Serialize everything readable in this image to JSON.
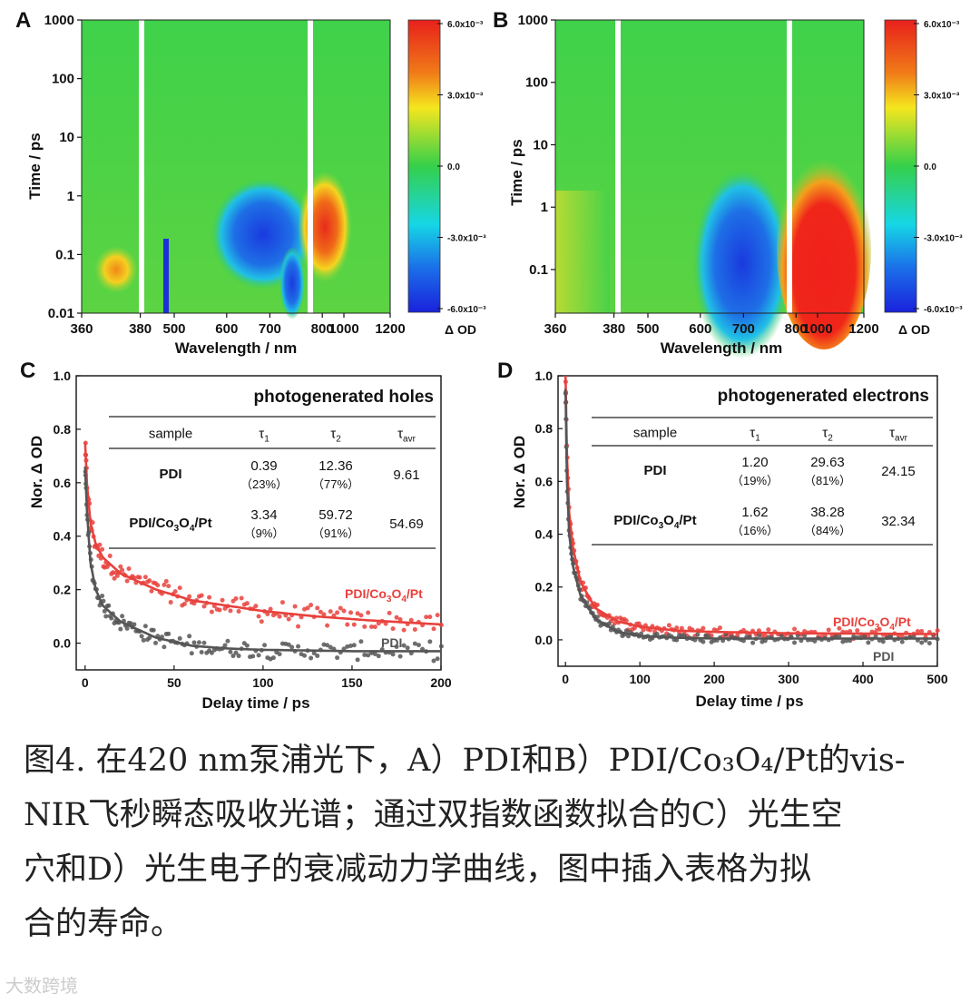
{
  "chart_data": [
    {
      "panel": "A",
      "type": "heatmap",
      "sample": "PDI",
      "xlabel": "Wavelength / nm",
      "ylabel": "Time / ps",
      "x_ticks": [
        "360",
        "380",
        "500",
        "600",
        "700",
        "800",
        "1000",
        "1200"
      ],
      "y_ticks": [
        "1000",
        "100",
        "10",
        "1",
        "0.1",
        "0.01"
      ],
      "y_scale": "log",
      "ylim": [
        0.01,
        1000
      ],
      "colorbar": {
        "label": "Δ OD",
        "ticks": [
          "6.0x10⁻³",
          "3.0x10⁻³",
          "0.0",
          "-3.0x10⁻³",
          "-6.0x10⁻³"
        ],
        "range": [
          -0.006,
          0.006
        ]
      },
      "features": [
        {
          "wavelength_nm": 370,
          "time_ps": 0.07,
          "sign": "positive"
        },
        {
          "wavelength_nm": 490,
          "time_ps": 0.05,
          "sign": "negative"
        },
        {
          "wavelength_nm": 700,
          "time_ps": 0.25,
          "sign": "negative"
        },
        {
          "wavelength_nm": 950,
          "time_ps": 0.3,
          "sign": "positive"
        }
      ]
    },
    {
      "panel": "B",
      "type": "heatmap",
      "sample": "PDI/Co3O4/Pt",
      "xlabel": "Wavelength / nm",
      "ylabel": "Time / ps",
      "x_ticks": [
        "360",
        "380",
        "500",
        "600",
        "700",
        "800",
        "1000",
        "1200"
      ],
      "y_ticks": [
        "1000",
        "100",
        "10",
        "1",
        "0.1"
      ],
      "y_scale": "log",
      "ylim": [
        0.02,
        1000
      ],
      "colorbar": {
        "label": "Δ OD",
        "ticks": [
          "6.0x10⁻³",
          "3.0x10⁻³",
          "0.0",
          "-3.0x10⁻³",
          "-6.0x10⁻³"
        ],
        "range": [
          -0.006,
          0.006
        ]
      },
      "features": [
        {
          "wavelength_nm": 720,
          "time_ps": 0.15,
          "sign": "negative"
        },
        {
          "wavelength_nm": 1050,
          "time_ps": 0.3,
          "sign": "positive"
        }
      ]
    },
    {
      "panel": "C",
      "type": "scatter",
      "title": "photogenerated holes",
      "xlabel": "Delay time / ps",
      "ylabel": "Nor. Δ OD",
      "xlim": [
        -5,
        200
      ],
      "ylim": [
        -0.1,
        1.0
      ],
      "x_ticks": [
        0,
        50,
        100,
        150,
        200
      ],
      "y_ticks": [
        0.0,
        0.2,
        0.4,
        0.6,
        0.8,
        1.0
      ],
      "series": [
        {
          "name": "PDI/Co3O4/Pt",
          "color": "#e8413c",
          "fit": [
            [
              0,
              0.75
            ],
            [
              1,
              0.6
            ],
            [
              3,
              0.45
            ],
            [
              6,
              0.37
            ],
            [
              10,
              0.32
            ],
            [
              20,
              0.26
            ],
            [
              40,
              0.2
            ],
            [
              60,
              0.16
            ],
            [
              80,
              0.14
            ],
            [
              100,
              0.12
            ],
            [
              130,
              0.1
            ],
            [
              160,
              0.085
            ],
            [
              200,
              0.07
            ]
          ]
        },
        {
          "name": "PDI",
          "color": "#555555",
          "fit": [
            [
              0,
              0.66
            ],
            [
              1,
              0.5
            ],
            [
              3,
              0.3
            ],
            [
              6,
              0.2
            ],
            [
              10,
              0.14
            ],
            [
              20,
              0.08
            ],
            [
              40,
              0.02
            ],
            [
              60,
              -0.01
            ],
            [
              80,
              -0.02
            ],
            [
              100,
              -0.025
            ],
            [
              150,
              -0.03
            ],
            [
              200,
              -0.03
            ]
          ]
        }
      ],
      "table": {
        "headers": [
          "sample",
          "τ",
          "τ",
          "τ"
        ],
        "header_subs": [
          "",
          "1",
          "2",
          "avr"
        ],
        "rows": [
          {
            "sample": "PDI",
            "t1": "0.39",
            "t1p": "（23%）",
            "t2": "12.36",
            "t2p": "（77%）",
            "tavr": "9.61"
          },
          {
            "sample": "PDI/Co3O4/Pt",
            "t1": "3.34",
            "t1p": "（9%）",
            "t2": "59.72",
            "t2p": "（91%）",
            "tavr": "54.69"
          }
        ]
      }
    },
    {
      "panel": "D",
      "type": "scatter",
      "title": "photogenerated electrons",
      "xlabel": "Delay time / ps",
      "ylabel": "Nor. Δ OD",
      "xlim": [
        -10,
        500
      ],
      "ylim": [
        -0.1,
        1.0
      ],
      "x_ticks": [
        0,
        100,
        200,
        300,
        400,
        500
      ],
      "y_ticks": [
        0.0,
        0.2,
        0.4,
        0.6,
        0.8,
        1.0
      ],
      "series": [
        {
          "name": "PDI/Co3O4/Pt",
          "color": "#e8413c",
          "fit": [
            [
              0,
              1.0
            ],
            [
              2,
              0.7
            ],
            [
              5,
              0.48
            ],
            [
              10,
              0.35
            ],
            [
              20,
              0.22
            ],
            [
              40,
              0.12
            ],
            [
              70,
              0.07
            ],
            [
              100,
              0.05
            ],
            [
              150,
              0.035
            ],
            [
              200,
              0.03
            ],
            [
              300,
              0.025
            ],
            [
              500,
              0.022
            ]
          ]
        },
        {
          "name": "PDI",
          "color": "#555555",
          "fit": [
            [
              0,
              0.95
            ],
            [
              2,
              0.6
            ],
            [
              5,
              0.4
            ],
            [
              10,
              0.28
            ],
            [
              20,
              0.17
            ],
            [
              40,
              0.08
            ],
            [
              70,
              0.03
            ],
            [
              100,
              0.015
            ],
            [
              150,
              0.008
            ],
            [
              200,
              0.005
            ],
            [
              300,
              0.005
            ],
            [
              500,
              0.005
            ]
          ]
        }
      ],
      "table": {
        "headers": [
          "sample",
          "τ",
          "τ",
          "τ"
        ],
        "header_subs": [
          "",
          "1",
          "2",
          "avr"
        ],
        "rows": [
          {
            "sample": "PDI",
            "t1": "1.20",
            "t1p": "（19%）",
            "t2": "29.63",
            "t2p": "（81%）",
            "tavr": "24.15"
          },
          {
            "sample": "PDI/Co3O4/Pt",
            "t1": "1.62",
            "t1p": "（16%）",
            "t2": "38.28",
            "t2p": "（84%）",
            "tavr": "32.34"
          }
        ]
      }
    }
  ],
  "caption": {
    "lines": [
      "图4. 在420 nm泵浦光下，A）PDI和B）PDI/Co₃O₄/Pt的vis-",
      "NIR飞秒瞬态吸收光谱；通过双指数函数拟合的C）光生空",
      "穴和D）光生电子的衰减动力学曲线，图中插入表格为拟",
      "合的寿命。"
    ]
  },
  "watermark": "大数跨境"
}
